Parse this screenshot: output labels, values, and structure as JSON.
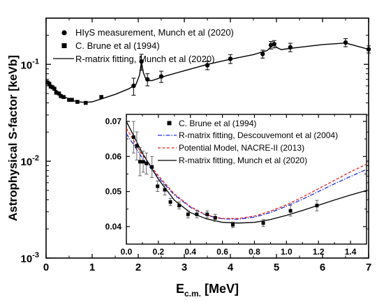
{
  "chart_data": [
    {
      "type": "scatter",
      "role": "main",
      "ylabel": "Astrophysical S-factor [keVb]",
      "xlabel_main": "E",
      "xlabel_sub": "c.m.",
      "xlabel_unit": "[MeV]",
      "xlim": [
        0,
        7
      ],
      "ylim": [
        0.001,
        0.3
      ],
      "yscale": "log",
      "xticks": [
        "0",
        "1",
        "2",
        "3",
        "4",
        "5",
        "6",
        "7"
      ],
      "yticks": [
        {
          "base": "10",
          "exp": "-3",
          "value": 0.001
        },
        {
          "base": "10",
          "exp": "-2",
          "value": 0.01
        },
        {
          "base": "10",
          "exp": "-1",
          "value": 0.1
        }
      ],
      "legend_position": "top-left",
      "series": [
        {
          "name": "HIγS measurement, Munch et al (2020)",
          "marker": "circle",
          "x": [
            1.9,
            2.07,
            2.2,
            2.5,
            3.5,
            4.0,
            4.7,
            4.88,
            4.95,
            5.3,
            6.5,
            7.0
          ],
          "y": [
            0.06,
            0.107,
            0.07,
            0.075,
            0.098,
            0.114,
            0.128,
            0.158,
            0.162,
            0.15,
            0.168,
            0.143
          ],
          "err": [
            0.012,
            0.02,
            0.01,
            0.01,
            0.01,
            0.012,
            0.012,
            0.014,
            0.014,
            0.015,
            0.016,
            0.012
          ]
        },
        {
          "name": "C. Brune et al (1994)",
          "marker": "square",
          "x": [
            0.03,
            0.07,
            0.1,
            0.14,
            0.18,
            0.22,
            0.28,
            0.32,
            0.38,
            0.5,
            0.56,
            0.68,
            0.86,
            1.2
          ],
          "y": [
            0.065,
            0.063,
            0.059,
            0.058,
            0.056,
            0.051,
            0.05,
            0.047,
            0.046,
            0.043,
            0.043,
            0.041,
            0.04,
            0.046
          ]
        },
        {
          "name": "R-matrix fitting, Munch et al (2020)",
          "style": "solid",
          "color": "#000000",
          "x": [
            0.0,
            0.1,
            0.2,
            0.3,
            0.4,
            0.5,
            0.6,
            0.7,
            0.85,
            1.0,
            1.2,
            1.5,
            1.8,
            1.95,
            2.03,
            2.07,
            2.11,
            2.18,
            2.3,
            2.6,
            3.0,
            3.5,
            4.0,
            4.5,
            4.8,
            4.9,
            4.95,
            5.0,
            5.1,
            5.4,
            6.0,
            6.5,
            7.0
          ],
          "y": [
            0.07,
            0.062,
            0.055,
            0.05,
            0.046,
            0.044,
            0.042,
            0.041,
            0.0405,
            0.041,
            0.044,
            0.049,
            0.056,
            0.062,
            0.078,
            0.108,
            0.082,
            0.068,
            0.068,
            0.076,
            0.086,
            0.1,
            0.113,
            0.126,
            0.139,
            0.155,
            0.161,
            0.15,
            0.142,
            0.148,
            0.16,
            0.166,
            0.143
          ]
        }
      ]
    },
    {
      "type": "scatter",
      "role": "inset",
      "xlim": [
        0,
        1.5
      ],
      "ylim": [
        0.035,
        0.072
      ],
      "xticks": [
        "0.0",
        "0.2",
        "0.4",
        "0.6",
        "0.8",
        "1.0",
        "1.2",
        "1.4"
      ],
      "yticks": [
        "0.04",
        "0.05",
        "0.06",
        "0.07"
      ],
      "legend_position": "top-right",
      "series": [
        {
          "name": "C. Brune et al (1994)",
          "marker": "square",
          "x": [
            0.045,
            0.065,
            0.085,
            0.105,
            0.125,
            0.16,
            0.195,
            0.24,
            0.275,
            0.33,
            0.385,
            0.44,
            0.505,
            0.555,
            0.665,
            0.855,
            1.025,
            1.19
          ],
          "y": [
            0.0655,
            0.063,
            0.0585,
            0.0585,
            0.058,
            0.057,
            0.0515,
            0.0505,
            0.047,
            0.046,
            0.0435,
            0.0435,
            0.0435,
            0.0425,
            0.0405,
            0.041,
            0.0445,
            0.046
          ],
          "err": [
            0.0045,
            0.004,
            0.004,
            0.003,
            0.003,
            0.003,
            0.0015,
            0.0015,
            0.001,
            0.001,
            0.001,
            0.001,
            0.001,
            0.001,
            0.0008,
            0.001,
            0.0015,
            0.0015
          ]
        },
        {
          "name": "R-matrix fitting, Descouvemont et al (2004)",
          "style": "dashdot",
          "color": "#1f2bd6",
          "x": [
            0.0,
            0.1,
            0.2,
            0.3,
            0.4,
            0.5,
            0.6,
            0.7,
            0.8,
            0.9,
            1.0,
            1.1,
            1.2,
            1.3,
            1.4,
            1.5
          ],
          "y": [
            0.0665,
            0.0595,
            0.054,
            0.049,
            0.0455,
            0.0432,
            0.0422,
            0.0421,
            0.0427,
            0.044,
            0.0458,
            0.0478,
            0.05,
            0.0522,
            0.0543,
            0.0563
          ]
        },
        {
          "name": "Potential Model, NACRE-II (2013)",
          "style": "dashed",
          "color": "#e52222",
          "x": [
            0.0,
            0.1,
            0.2,
            0.3,
            0.4,
            0.5,
            0.6,
            0.7,
            0.8,
            0.9,
            1.0,
            1.1,
            1.2,
            1.3,
            1.4,
            1.5
          ],
          "y": [
            0.068,
            0.0605,
            0.0545,
            0.0493,
            0.0457,
            0.0433,
            0.0423,
            0.0423,
            0.043,
            0.0444,
            0.0462,
            0.0484,
            0.0508,
            0.0532,
            0.0556,
            0.0578
          ]
        },
        {
          "name": "R-matrix fitting, Munch et al (2020)",
          "style": "solid",
          "color": "#000000",
          "x": [
            0.0,
            0.1,
            0.2,
            0.3,
            0.4,
            0.5,
            0.6,
            0.7,
            0.8,
            0.9,
            1.0,
            1.1,
            1.2,
            1.3,
            1.4,
            1.5
          ],
          "y": [
            0.07,
            0.061,
            0.0535,
            0.0475,
            0.044,
            0.0422,
            0.0412,
            0.041,
            0.0412,
            0.042,
            0.0432,
            0.0446,
            0.0461,
            0.0476,
            0.049,
            0.0503
          ]
        }
      ]
    }
  ]
}
